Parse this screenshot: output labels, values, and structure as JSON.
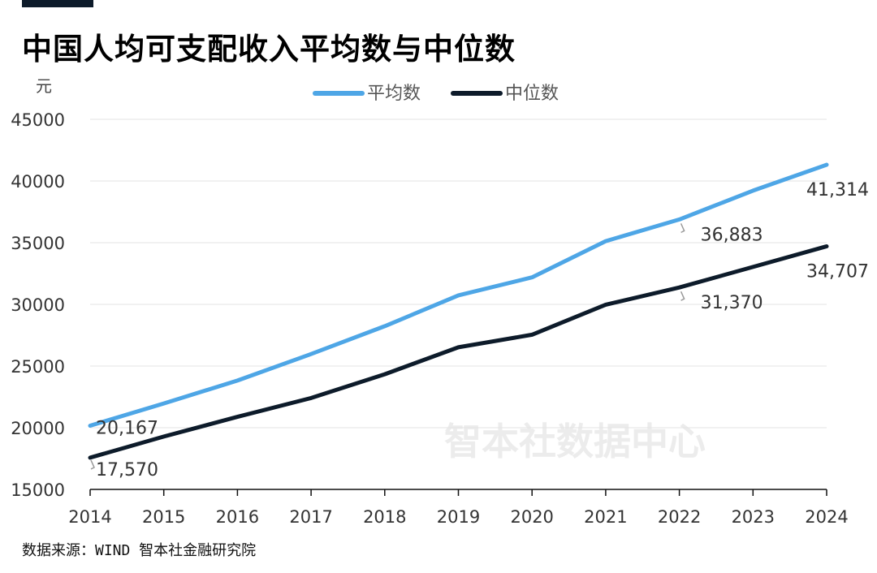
{
  "title": "中国人均可支配收入平均数与中位数",
  "source": "数据来源：WIND 智本社金融研究院",
  "watermark": "智本社数据中心",
  "chart_data": {
    "type": "line",
    "title": "中国人均可支配收入平均数与中位数",
    "ylabel": "元",
    "xlabel": "",
    "x": [
      "2014",
      "2015",
      "2016",
      "2017",
      "2018",
      "2019",
      "2020",
      "2021",
      "2022",
      "2023",
      "2024"
    ],
    "yticks": [
      "45000",
      "40000",
      "35000",
      "30000",
      "25000",
      "20000",
      "15000"
    ],
    "ylim": [
      15000,
      45000
    ],
    "grid": true,
    "legend_position": "top-center",
    "series": [
      {
        "name": "平均数",
        "color": "#4ea6e6",
        "values": [
          20167,
          21966,
          23821,
          25974,
          28228,
          30733,
          32189,
          35128,
          36883,
          39218,
          41314
        ]
      },
      {
        "name": "中位数",
        "color": "#0d1b2a",
        "values": [
          17570,
          19281,
          20883,
          22408,
          24336,
          26523,
          27540,
          29975,
          31370,
          33036,
          34707
        ]
      }
    ],
    "annotations": [
      {
        "series": 0,
        "index": 0,
        "text": "20,167"
      },
      {
        "series": 1,
        "index": 0,
        "text": "17,570"
      },
      {
        "series": 0,
        "index": 8,
        "text": "36,883"
      },
      {
        "series": 1,
        "index": 8,
        "text": "31,370"
      },
      {
        "series": 0,
        "index": 10,
        "text": "41,314"
      },
      {
        "series": 1,
        "index": 10,
        "text": "34,707"
      }
    ]
  }
}
